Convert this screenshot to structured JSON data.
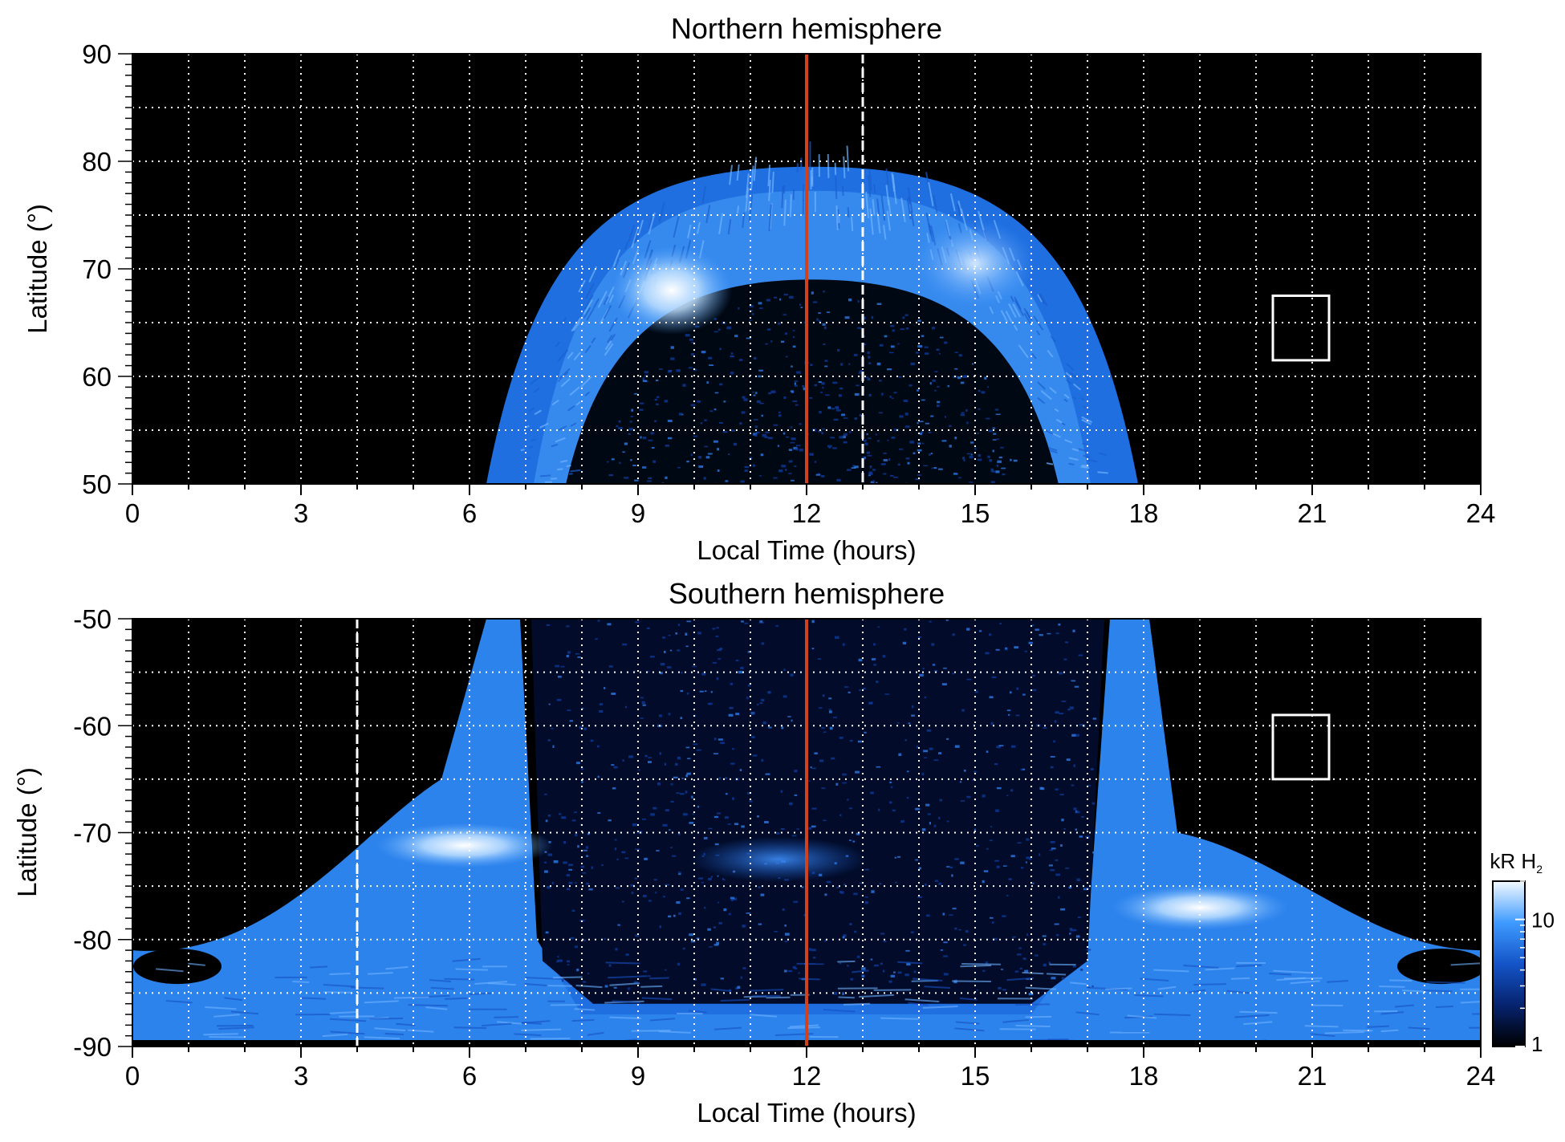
{
  "colors": {
    "background": "#000000",
    "noon_line": "#d0411c",
    "grid": "#ffffff",
    "aurora_dim": "#0a2a8c",
    "aurora_mid": "#1f6fe0",
    "aurora_bright": "#7ec0ff",
    "aurora_peak": "#eef6ff"
  },
  "chart_data": [
    {
      "type": "heatmap",
      "title": "Northern hemisphere",
      "xlabel": "Local Time (hours)",
      "ylabel": "Latitude (°)",
      "xlim": [
        0,
        24
      ],
      "ylim": [
        50,
        90
      ],
      "x_ticks": [
        "0",
        "3",
        "6",
        "9",
        "12",
        "15",
        "18",
        "21",
        "24"
      ],
      "y_ticks": [
        "50",
        "60",
        "70",
        "80",
        "90"
      ],
      "grid": true,
      "noon_line_lt": 12,
      "dashed_line_lt": 13,
      "box": {
        "lt": [
          20.3,
          21.3
        ],
        "lat": [
          61.5,
          67.5
        ]
      },
      "auroral_oval": {
        "lt_center": 12.1,
        "lt_halfwidth_outer": 5.1,
        "lt_halfwidth_inner": 3.9,
        "lat_top_outer": 79.5,
        "lat_top_inner": 69
      },
      "hot_spots": [
        {
          "lt": 9.6,
          "lat": 68,
          "level": "peak"
        },
        {
          "lt": 15,
          "lat": 70.5,
          "level": "bright"
        }
      ]
    },
    {
      "type": "heatmap",
      "title": "Southern hemisphere",
      "xlabel": "Local Time (hours)",
      "ylabel": "Latitude (°)",
      "xlim": [
        0,
        24
      ],
      "ylim": [
        -90,
        -50
      ],
      "x_ticks": [
        "0",
        "3",
        "6",
        "9",
        "12",
        "15",
        "18",
        "21",
        "24"
      ],
      "y_ticks": [
        "-50",
        "-60",
        "-70",
        "-80",
        "-90"
      ],
      "grid": true,
      "noon_line_lt": 12,
      "dashed_line_lt": 4,
      "box": {
        "lt": [
          20.3,
          21.3
        ],
        "lat": [
          -65,
          -59
        ]
      },
      "hot_spots": [
        {
          "lt": 5.9,
          "lat": -71.2,
          "level": "peak"
        },
        {
          "lt": 19,
          "lat": -77,
          "level": "peak"
        },
        {
          "lt": 11.5,
          "lat": -72.5,
          "level": "mid"
        }
      ],
      "colorbar": {
        "label": "kR H",
        "label_sub": "2",
        "ticks": [
          "10",
          "1"
        ],
        "scale": "log",
        "range": [
          1,
          20
        ]
      }
    }
  ]
}
